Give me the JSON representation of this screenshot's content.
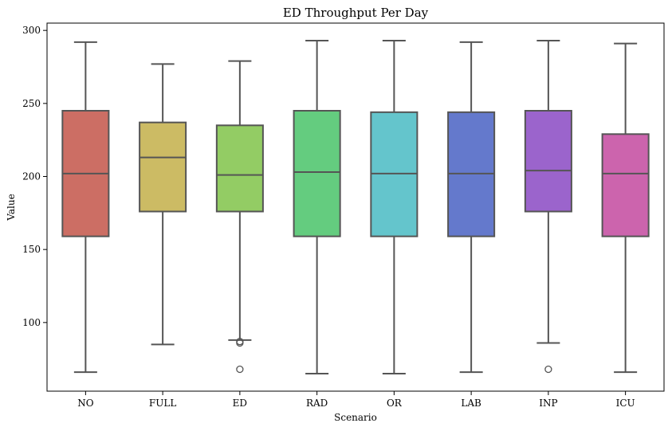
{
  "chart_data": {
    "type": "box",
    "title": "ED Throughput Per Day",
    "xlabel": "Scenario",
    "ylabel": "Value",
    "ylim": [
      53,
      305
    ],
    "yticks": [
      100,
      150,
      200,
      250,
      300
    ],
    "grid": false,
    "legend": "none",
    "line_color": "#555555",
    "series": [
      {
        "category": "NO",
        "min": 66,
        "q1": 159,
        "median": 202,
        "q3": 245,
        "max": 292,
        "outliers": [],
        "color": "#cc6e64"
      },
      {
        "category": "FULL",
        "min": 85,
        "q1": 176,
        "median": 213,
        "q3": 237,
        "max": 277,
        "outliers": [],
        "color": "#ccbb64"
      },
      {
        "category": "ED",
        "min": 88,
        "q1": 176,
        "median": 201,
        "q3": 235,
        "max": 279,
        "outliers": [
          86,
          87,
          68
        ],
        "color": "#93cc64"
      },
      {
        "category": "RAD",
        "min": 65,
        "q1": 159,
        "median": 203,
        "q3": 245,
        "max": 293,
        "outliers": [],
        "color": "#64cc7f"
      },
      {
        "category": "OR",
        "min": 65,
        "q1": 159,
        "median": 202,
        "q3": 244,
        "max": 293,
        "outliers": [],
        "color": "#64c5cc"
      },
      {
        "category": "LAB",
        "min": 66,
        "q1": 159,
        "median": 202,
        "q3": 244,
        "max": 292,
        "outliers": [],
        "color": "#6479cc"
      },
      {
        "category": "INP",
        "min": 86,
        "q1": 176,
        "median": 204,
        "q3": 245,
        "max": 293,
        "outliers": [
          68
        ],
        "color": "#9b64cc"
      },
      {
        "category": "ICU",
        "min": 66,
        "q1": 159,
        "median": 202,
        "q3": 229,
        "max": 291,
        "outliers": [],
        "color": "#cc64ad"
      }
    ]
  }
}
